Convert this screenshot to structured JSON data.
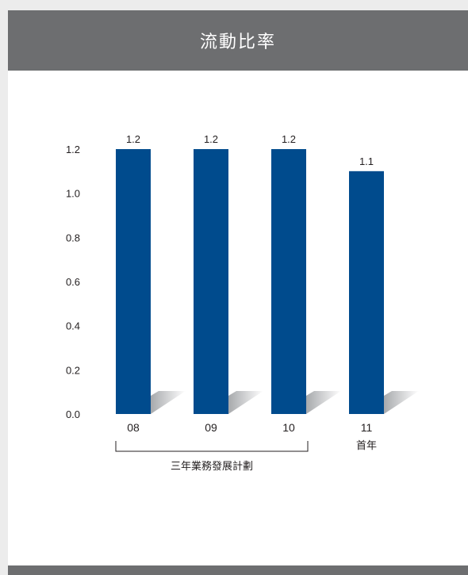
{
  "chart_data": {
    "type": "bar",
    "title": "流動比率",
    "categories": [
      "08",
      "09",
      "10",
      "11"
    ],
    "category_sublabels": [
      "",
      "",
      "",
      "首年"
    ],
    "values": [
      1.2,
      1.2,
      1.2,
      1.1
    ],
    "data_labels": [
      "1.2",
      "1.2",
      "1.2",
      "1.1"
    ],
    "ylim": [
      0.0,
      1.2
    ],
    "yticks": [
      "0.0",
      "0.2",
      "0.4",
      "0.6",
      "0.8",
      "1.0",
      "1.2"
    ],
    "group_bracket": {
      "label": "三年業務發展計劃",
      "covers": [
        "08",
        "09",
        "10"
      ]
    },
    "grid": false,
    "legend": "none"
  },
  "colors": {
    "bar": "#004b8d",
    "header": "#6d6e70",
    "text": "#231f20",
    "shadow": "#c7c8ca"
  }
}
